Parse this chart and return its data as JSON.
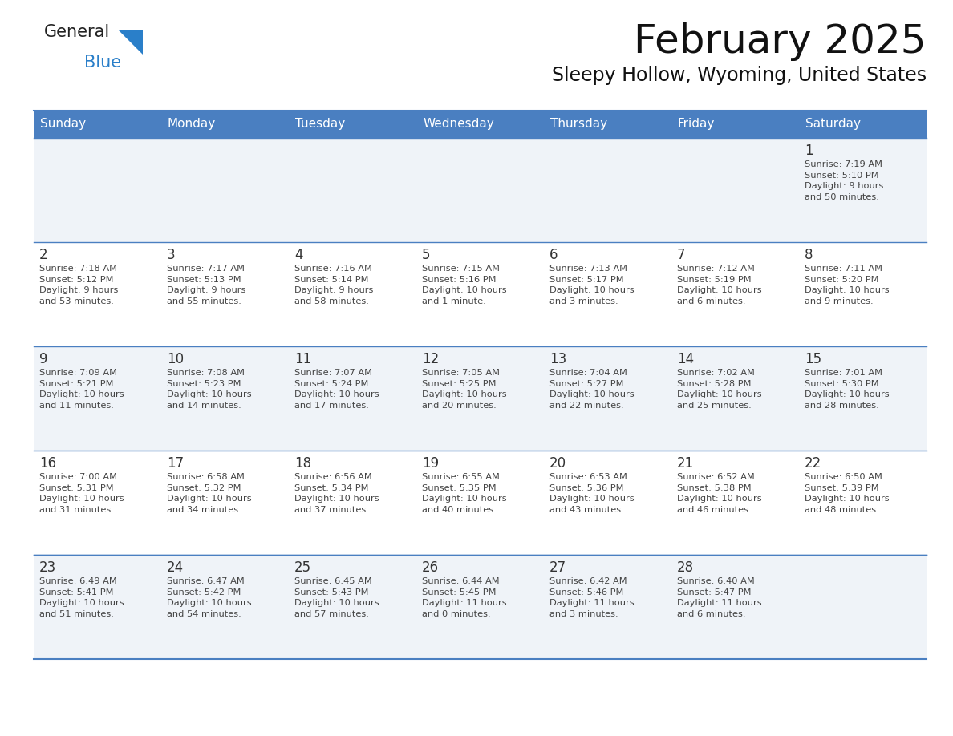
{
  "title": "February 2025",
  "subtitle": "Sleepy Hollow, Wyoming, United States",
  "header_bg": "#4a7fc1",
  "header_text_color": "#ffffff",
  "cell_bg_odd": "#f0f4f8",
  "cell_bg_even": "#ffffff",
  "border_color": "#4a7fc1",
  "text_color": "#333333",
  "days_of_week": [
    "Sunday",
    "Monday",
    "Tuesday",
    "Wednesday",
    "Thursday",
    "Friday",
    "Saturday"
  ],
  "weeks": [
    [
      {
        "day": null,
        "info": ""
      },
      {
        "day": null,
        "info": ""
      },
      {
        "day": null,
        "info": ""
      },
      {
        "day": null,
        "info": ""
      },
      {
        "day": null,
        "info": ""
      },
      {
        "day": null,
        "info": ""
      },
      {
        "day": 1,
        "info": "Sunrise: 7:19 AM\nSunset: 5:10 PM\nDaylight: 9 hours\nand 50 minutes."
      }
    ],
    [
      {
        "day": 2,
        "info": "Sunrise: 7:18 AM\nSunset: 5:12 PM\nDaylight: 9 hours\nand 53 minutes."
      },
      {
        "day": 3,
        "info": "Sunrise: 7:17 AM\nSunset: 5:13 PM\nDaylight: 9 hours\nand 55 minutes."
      },
      {
        "day": 4,
        "info": "Sunrise: 7:16 AM\nSunset: 5:14 PM\nDaylight: 9 hours\nand 58 minutes."
      },
      {
        "day": 5,
        "info": "Sunrise: 7:15 AM\nSunset: 5:16 PM\nDaylight: 10 hours\nand 1 minute."
      },
      {
        "day": 6,
        "info": "Sunrise: 7:13 AM\nSunset: 5:17 PM\nDaylight: 10 hours\nand 3 minutes."
      },
      {
        "day": 7,
        "info": "Sunrise: 7:12 AM\nSunset: 5:19 PM\nDaylight: 10 hours\nand 6 minutes."
      },
      {
        "day": 8,
        "info": "Sunrise: 7:11 AM\nSunset: 5:20 PM\nDaylight: 10 hours\nand 9 minutes."
      }
    ],
    [
      {
        "day": 9,
        "info": "Sunrise: 7:09 AM\nSunset: 5:21 PM\nDaylight: 10 hours\nand 11 minutes."
      },
      {
        "day": 10,
        "info": "Sunrise: 7:08 AM\nSunset: 5:23 PM\nDaylight: 10 hours\nand 14 minutes."
      },
      {
        "day": 11,
        "info": "Sunrise: 7:07 AM\nSunset: 5:24 PM\nDaylight: 10 hours\nand 17 minutes."
      },
      {
        "day": 12,
        "info": "Sunrise: 7:05 AM\nSunset: 5:25 PM\nDaylight: 10 hours\nand 20 minutes."
      },
      {
        "day": 13,
        "info": "Sunrise: 7:04 AM\nSunset: 5:27 PM\nDaylight: 10 hours\nand 22 minutes."
      },
      {
        "day": 14,
        "info": "Sunrise: 7:02 AM\nSunset: 5:28 PM\nDaylight: 10 hours\nand 25 minutes."
      },
      {
        "day": 15,
        "info": "Sunrise: 7:01 AM\nSunset: 5:30 PM\nDaylight: 10 hours\nand 28 minutes."
      }
    ],
    [
      {
        "day": 16,
        "info": "Sunrise: 7:00 AM\nSunset: 5:31 PM\nDaylight: 10 hours\nand 31 minutes."
      },
      {
        "day": 17,
        "info": "Sunrise: 6:58 AM\nSunset: 5:32 PM\nDaylight: 10 hours\nand 34 minutes."
      },
      {
        "day": 18,
        "info": "Sunrise: 6:56 AM\nSunset: 5:34 PM\nDaylight: 10 hours\nand 37 minutes."
      },
      {
        "day": 19,
        "info": "Sunrise: 6:55 AM\nSunset: 5:35 PM\nDaylight: 10 hours\nand 40 minutes."
      },
      {
        "day": 20,
        "info": "Sunrise: 6:53 AM\nSunset: 5:36 PM\nDaylight: 10 hours\nand 43 minutes."
      },
      {
        "day": 21,
        "info": "Sunrise: 6:52 AM\nSunset: 5:38 PM\nDaylight: 10 hours\nand 46 minutes."
      },
      {
        "day": 22,
        "info": "Sunrise: 6:50 AM\nSunset: 5:39 PM\nDaylight: 10 hours\nand 48 minutes."
      }
    ],
    [
      {
        "day": 23,
        "info": "Sunrise: 6:49 AM\nSunset: 5:41 PM\nDaylight: 10 hours\nand 51 minutes."
      },
      {
        "day": 24,
        "info": "Sunrise: 6:47 AM\nSunset: 5:42 PM\nDaylight: 10 hours\nand 54 minutes."
      },
      {
        "day": 25,
        "info": "Sunrise: 6:45 AM\nSunset: 5:43 PM\nDaylight: 10 hours\nand 57 minutes."
      },
      {
        "day": 26,
        "info": "Sunrise: 6:44 AM\nSunset: 5:45 PM\nDaylight: 11 hours\nand 0 minutes."
      },
      {
        "day": 27,
        "info": "Sunrise: 6:42 AM\nSunset: 5:46 PM\nDaylight: 11 hours\nand 3 minutes."
      },
      {
        "day": 28,
        "info": "Sunrise: 6:40 AM\nSunset: 5:47 PM\nDaylight: 11 hours\nand 6 minutes."
      },
      {
        "day": null,
        "info": ""
      }
    ]
  ]
}
